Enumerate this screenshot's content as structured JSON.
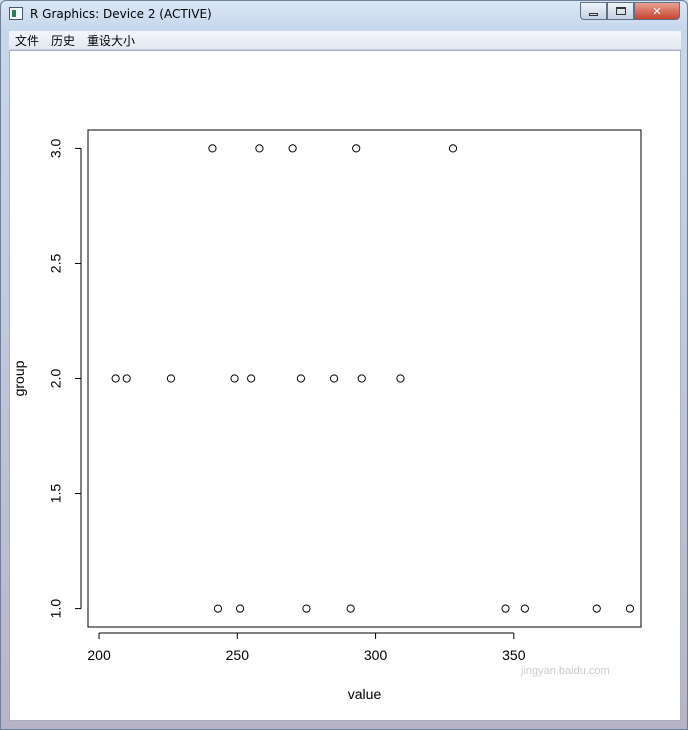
{
  "window": {
    "title": "R Graphics: Device 2 (ACTIVE)"
  },
  "menu": {
    "items": [
      "文件",
      "历史",
      "重设大小"
    ]
  },
  "chart_data": {
    "type": "scatter",
    "xlabel": "value",
    "ylabel": "group",
    "xlim": [
      196,
      396
    ],
    "ylim": [
      0.92,
      3.08
    ],
    "x_ticks": [
      200,
      250,
      300,
      350
    ],
    "y_ticks": [
      1.0,
      1.5,
      2.0,
      2.5,
      3.0
    ],
    "x_tick_labels": [
      "200",
      "250",
      "300",
      "350"
    ],
    "y_tick_labels": [
      "1.0",
      "1.5",
      "2.0",
      "2.5",
      "3.0"
    ],
    "points": [
      {
        "x": 206,
        "y": 2
      },
      {
        "x": 210,
        "y": 2
      },
      {
        "x": 226,
        "y": 2
      },
      {
        "x": 249,
        "y": 2
      },
      {
        "x": 255,
        "y": 2
      },
      {
        "x": 273,
        "y": 2
      },
      {
        "x": 285,
        "y": 2
      },
      {
        "x": 295,
        "y": 2
      },
      {
        "x": 309,
        "y": 2
      },
      {
        "x": 241,
        "y": 3
      },
      {
        "x": 258,
        "y": 3
      },
      {
        "x": 270,
        "y": 3
      },
      {
        "x": 293,
        "y": 3
      },
      {
        "x": 328,
        "y": 3
      },
      {
        "x": 243,
        "y": 1
      },
      {
        "x": 251,
        "y": 1
      },
      {
        "x": 275,
        "y": 1
      },
      {
        "x": 291,
        "y": 1
      },
      {
        "x": 347,
        "y": 1
      },
      {
        "x": 354,
        "y": 1
      },
      {
        "x": 380,
        "y": 1
      },
      {
        "x": 392,
        "y": 1
      }
    ],
    "marker": "open-circle",
    "grid": false
  },
  "watermark_text": "jingyan.baidu.com",
  "colors": {
    "window_frame": "#c6d7ec",
    "close_button": "#c8432f",
    "plot_ink": "#000000"
  }
}
